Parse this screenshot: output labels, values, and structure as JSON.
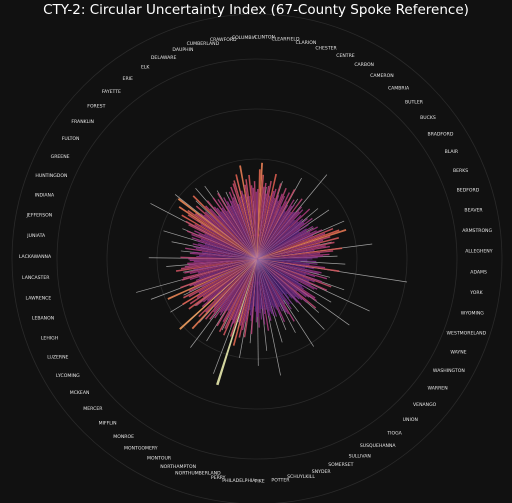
{
  "chart_data": {
    "type": "bar",
    "subtype": "radial",
    "title": "CTY-2: Circular Uncertainty Index (67-County Spoke Reference)",
    "categories": [
      "CLINTON",
      "CLEARFIELD",
      "CLARION",
      "CHESTER",
      "CENTRE",
      "CARBON",
      "CAMERON",
      "CAMBRIA",
      "BUTLER",
      "BUCKS",
      "BRADFORD",
      "BLAIR",
      "BERKS",
      "BEDFORD",
      "BEAVER",
      "ARMSTRONG",
      "ALLEGHENY",
      "ADAMS",
      "YORK",
      "WYOMING",
      "WESTMORELAND",
      "WAYNE",
      "WASHINGTON",
      "WARREN",
      "VENANGO",
      "UNION",
      "TIOGA",
      "SUSQUEHANNA",
      "SULLIVAN",
      "SOMERSET",
      "SNYDER",
      "SCHUYLKILL",
      "POTTER",
      "PIKE",
      "PHILADELPHIA",
      "PERRY",
      "NORTHUMBERLAND",
      "NORTHAMPTON",
      "MONTOUR",
      "MONTGOMERY",
      "MONROE",
      "MIFFLIN",
      "MERCER",
      "MCKEAN",
      "LYCOMING",
      "LUZERNE",
      "LEHIGH",
      "LEBANON",
      "LAWRENCE",
      "LANCASTER",
      "LACKAWANNA",
      "JUNIATA",
      "JEFFERSON",
      "INDIANA",
      "HUNTINGDON",
      "GREENE",
      "FULTON",
      "FRANKLIN",
      "FOREST",
      "FAYETTE",
      "ERIE",
      "ELK",
      "DELAWARE",
      "DAUPHIN",
      "CUMBERLAND",
      "CRAWFORD",
      "COLUMBIA"
    ],
    "bar_values": [
      0.42,
      0.38,
      0.45,
      0.33,
      0.46,
      0.4,
      0.52,
      0.63,
      0.44,
      0.37,
      0.5,
      0.48,
      0.41,
      0.55,
      0.46,
      0.39,
      0.52,
      0.6,
      0.47,
      0.43,
      0.58,
      0.45,
      0.51,
      0.49,
      0.36,
      0.44,
      0.4,
      0.42,
      0.53,
      0.55,
      0.49,
      0.47,
      0.39,
      0.58,
      0.5,
      0.46,
      0.44,
      0.41,
      0.48,
      0.45,
      0.4,
      0.35,
      0.38,
      0.43,
      0.33,
      0.42,
      0.46,
      0.37,
      0.4,
      0.55,
      0.48,
      0.46,
      0.38,
      0.44,
      0.4,
      0.52,
      0.47,
      0.41,
      0.39,
      0.46,
      0.37,
      0.45,
      0.43,
      0.41,
      0.48,
      0.44,
      0.39,
      0.55,
      0.42,
      0.5,
      0.38,
      0.46,
      0.41,
      0.52,
      0.44,
      0.48,
      0.4,
      0.36,
      0.57,
      0.47,
      0.43,
      0.39,
      0.6,
      0.48,
      0.55,
      0.61,
      0.52,
      0.68,
      0.5,
      1.0,
      0.62,
      0.52,
      0.55,
      0.5,
      0.63,
      0.58,
      0.49,
      0.62,
      0.54,
      0.45,
      0.59,
      0.47,
      0.51,
      0.49,
      0.55,
      0.46,
      0.58,
      0.52,
      0.6,
      0.49,
      0.72,
      0.56,
      0.62,
      0.45,
      0.79,
      0.55,
      0.49,
      0.52,
      0.58,
      0.64,
      0.5,
      0.61,
      0.54,
      0.66,
      0.51,
      0.59,
      0.63,
      0.47,
      0.57,
      0.74,
      0.52,
      0.55,
      0.62,
      0.49,
      0.46,
      0.53,
      0.59,
      0.58,
      0.46,
      0.52,
      0.56,
      0.49,
      0.62,
      0.58,
      0.55,
      0.52,
      0.53,
      0.48,
      0.51,
      0.52,
      0.58,
      0.46,
      0.44,
      0.51,
      0.49,
      0.42,
      0.55,
      0.47,
      0.49,
      0.44,
      0.5,
      0.46,
      0.41,
      0.48,
      0.52,
      0.45,
      0.53,
      0.57,
      0.48,
      0.52,
      0.44,
      0.58,
      0.61,
      0.54,
      0.66,
      0.5,
      0.62,
      0.71,
      0.64,
      0.58,
      0.75,
      0.55,
      0.52,
      0.61,
      0.53,
      0.49,
      0.68,
      0.56,
      0.52,
      0.44,
      0.58,
      0.51,
      0.49,
      0.45,
      0.57,
      0.47,
      0.54,
      0.43,
      0.58,
      0.46,
      0.53,
      0.49,
      0.45,
      0.51,
      0.48,
      0.55,
      0.5,
      0.58,
      0.44,
      0.6,
      0.62,
      0.49,
      0.66,
      0.53,
      0.5,
      0.72,
      0.57,
      0.61,
      0.48,
      0.64,
      0.56,
      0.54,
      0.59,
      0.51,
      0.53,
      0.68,
      0.73,
      0.64,
      0.55,
      0.58,
      0.5,
      0.56,
      0.6,
      0.49,
      0.66,
      0.53,
      0.55,
      0.48,
      0.6,
      0.51,
      0.47,
      0.53,
      0.58,
      0.52,
      0.44,
      0.56,
      0.49,
      0.6,
      0.47,
      0.42,
      0.53,
      0.48,
      0.5,
      0.44,
      0.57,
      0.45,
      0.46,
      0.52,
      0.48,
      0.51,
      0.41,
      0.47,
      0.55,
      0.42,
      0.46,
      0.44,
      0.49,
      0.45,
      0.52,
      0.4,
      0.47,
      0.38,
      0.44,
      0.49,
      0.43,
      0.52,
      0.45,
      0.5,
      0.54,
      0.46,
      0.62,
      0.55,
      0.66,
      0.71,
      0.58,
      0.52,
      0.64,
      0.49,
      0.6,
      0.53,
      0.56,
      0.44,
      0.65,
      0.58,
      0.48,
      0.55,
      0.5,
      0.46
    ],
    "spoke_values": [
      0.5,
      0.55,
      0.38,
      0.62,
      0.41,
      0.7,
      0.55,
      0.83,
      0.35,
      0.6,
      0.66,
      0.49,
      0.72,
      0.52,
      0.58,
      0.88,
      0.61,
      0.67,
      1.15,
      0.57,
      0.7,
      0.94,
      0.65,
      0.86,
      0.62,
      0.74,
      0.51,
      0.79,
      0.63,
      0.58,
      0.66,
      0.9,
      0.7,
      0.81,
      0.64,
      0.76,
      0.55,
      0.93,
      0.6,
      0.73,
      0.84,
      0.65,
      0.71,
      0.59,
      0.77,
      0.62,
      0.86,
      0.95,
      0.57,
      0.69,
      0.82,
      0.58,
      0.66,
      0.74,
      0.61,
      0.91,
      0.54,
      0.79,
      0.64,
      0.71,
      0.68,
      0.6,
      0.56,
      0.52,
      0.63,
      0.48,
      0.44
    ],
    "angle_start_deg": 0,
    "colormap": [
      "#3a1f7a",
      "#7b2f8e",
      "#b13c7d",
      "#e0614e",
      "#f49a5b",
      "#f5d48e",
      "#eef0b2"
    ],
    "colors": {
      "background": "#111111",
      "grid": "#2a2a2a",
      "spoke": "#cfcfcf",
      "text": "#e6e6e6",
      "title": "#ffffff"
    },
    "grid": true,
    "legend": "none"
  }
}
